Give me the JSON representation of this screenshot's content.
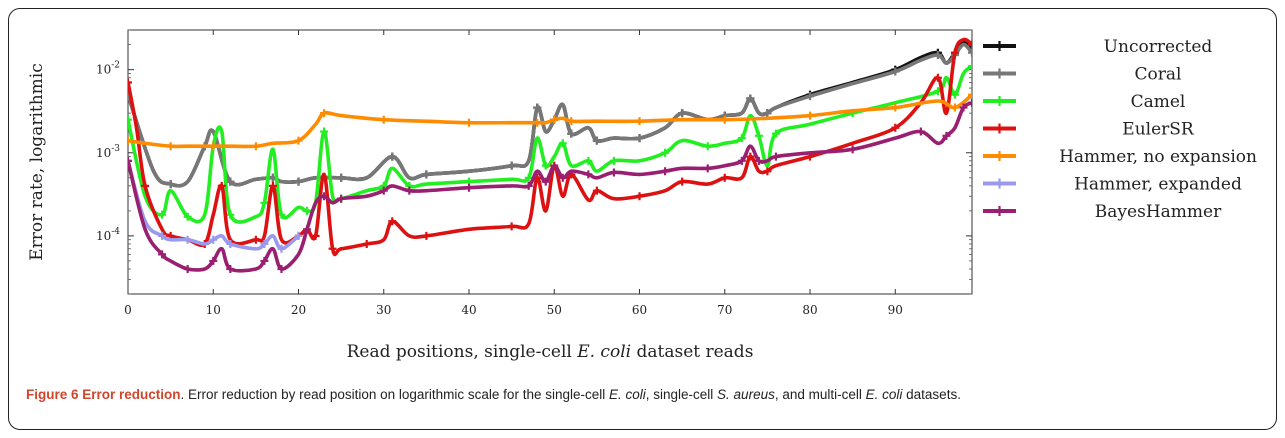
{
  "caption": {
    "figure_label": "Figure 6 Error reduction",
    "text_1": ". Error reduction by read position on logarithmic scale for the single-cell ",
    "italic_1": "E. coli",
    "text_2": ", single-cell ",
    "italic_2": "S. aureus",
    "text_3": ", and multi-cell ",
    "italic_3": "E. coli",
    "text_4": " datasets."
  },
  "chart_data": {
    "type": "line",
    "title": "",
    "xlabel_parts": [
      "Read positions, single-cell ",
      "E. coli",
      " dataset reads"
    ],
    "ylabel": "Error rate, logarithmic",
    "xlim": [
      0,
      99
    ],
    "ylim": [
      2e-05,
      0.03
    ],
    "y_scale": "log",
    "grid": false,
    "legend_position": "right",
    "x_ticks": [
      0,
      10,
      20,
      30,
      40,
      50,
      60,
      70,
      80,
      90
    ],
    "y_ticks": [
      {
        "value": 0.0001,
        "label": "10^-4"
      },
      {
        "value": 0.001,
        "label": "10^-3"
      },
      {
        "value": 0.01,
        "label": "10^-2"
      }
    ],
    "series": [
      {
        "name": "Uncorrected",
        "color": "#111111",
        "x": [
          0,
          3,
          5,
          7,
          9,
          10,
          12,
          15,
          17,
          18,
          20,
          22,
          25,
          28,
          31,
          33,
          35,
          40,
          45,
          47,
          48,
          49,
          50,
          51,
          52,
          54,
          55,
          57,
          60,
          63,
          65,
          68,
          70,
          72,
          73,
          74,
          75,
          76,
          80,
          85,
          90,
          93,
          95,
          96,
          97,
          98,
          99
        ],
        "y": [
          0.005,
          0.0006,
          0.00042,
          0.00045,
          0.0012,
          0.0018,
          0.00045,
          0.00048,
          0.0005,
          0.00045,
          0.00045,
          0.0005,
          0.0005,
          0.0005,
          0.0009,
          0.0005,
          0.00055,
          0.0006,
          0.0007,
          0.0008,
          0.0035,
          0.0018,
          0.0025,
          0.0038,
          0.0017,
          0.002,
          0.0014,
          0.0015,
          0.0015,
          0.002,
          0.003,
          0.0025,
          0.0028,
          0.003,
          0.0045,
          0.003,
          0.003,
          0.0035,
          0.005,
          0.007,
          0.01,
          0.014,
          0.016,
          0.012,
          0.016,
          0.022,
          0.018
        ]
      },
      {
        "name": "Coral",
        "color": "#777777",
        "x": [
          0,
          3,
          5,
          7,
          9,
          10,
          12,
          15,
          17,
          18,
          20,
          22,
          25,
          28,
          31,
          33,
          35,
          40,
          45,
          47,
          48,
          49,
          50,
          51,
          52,
          54,
          55,
          57,
          60,
          63,
          65,
          68,
          70,
          72,
          73,
          74,
          75,
          76,
          80,
          85,
          90,
          93,
          95,
          96,
          97,
          98,
          99
        ],
        "y": [
          0.005,
          0.0006,
          0.00042,
          0.00045,
          0.0012,
          0.0018,
          0.00045,
          0.00048,
          0.0005,
          0.00045,
          0.00045,
          0.0005,
          0.0005,
          0.0005,
          0.0009,
          0.0005,
          0.00055,
          0.0006,
          0.0007,
          0.0008,
          0.0035,
          0.0018,
          0.0025,
          0.0038,
          0.0017,
          0.002,
          0.0014,
          0.0015,
          0.0015,
          0.002,
          0.003,
          0.0025,
          0.0028,
          0.003,
          0.0045,
          0.003,
          0.003,
          0.0035,
          0.0048,
          0.0068,
          0.0095,
          0.013,
          0.015,
          0.012,
          0.015,
          0.02,
          0.016
        ]
      },
      {
        "name": "Camel",
        "color": "#22ee22",
        "x": [
          0,
          2,
          4,
          5,
          7,
          9,
          10,
          11,
          12,
          15,
          16,
          17,
          18,
          20,
          21,
          22,
          23,
          24,
          25,
          28,
          30,
          31,
          33,
          35,
          40,
          45,
          47,
          48,
          49,
          50,
          51,
          52,
          54,
          55,
          57,
          60,
          63,
          65,
          68,
          70,
          72,
          73,
          74,
          75,
          76,
          80,
          85,
          90,
          95,
          96,
          97,
          98,
          99
        ],
        "y": [
          0.0025,
          0.0003,
          0.00018,
          0.00035,
          0.00017,
          0.00018,
          0.0012,
          0.0018,
          0.00018,
          0.00017,
          0.00025,
          0.0011,
          0.00018,
          0.00022,
          0.0002,
          0.00025,
          0.0018,
          0.0003,
          0.00028,
          0.00035,
          0.0004,
          0.00065,
          0.0004,
          0.00042,
          0.00045,
          0.00048,
          0.0005,
          0.0015,
          0.0007,
          0.0009,
          0.0013,
          0.0007,
          0.0008,
          0.0006,
          0.0008,
          0.0008,
          0.001,
          0.0014,
          0.0012,
          0.0013,
          0.0015,
          0.0028,
          0.0016,
          0.0007,
          0.0017,
          0.0022,
          0.003,
          0.004,
          0.0055,
          0.008,
          0.005,
          0.009,
          0.011
        ]
      },
      {
        "name": "EulerSR",
        "color": "#dd1111",
        "x": [
          0,
          1,
          2,
          4,
          5,
          7,
          9,
          10,
          11,
          12,
          15,
          16,
          17,
          18,
          20,
          21,
          22,
          23,
          24,
          25,
          28,
          30,
          31,
          33,
          35,
          40,
          45,
          47,
          48,
          49,
          50,
          51,
          52,
          54,
          55,
          57,
          60,
          63,
          65,
          68,
          70,
          72,
          73,
          74,
          75,
          76,
          80,
          85,
          90,
          93,
          95,
          96,
          97,
          98,
          99
        ],
        "y": [
          0.007,
          0.002,
          0.0004,
          0.00012,
          0.0001,
          9e-05,
          8e-05,
          0.00018,
          0.0004,
          9e-05,
          9e-05,
          0.0001,
          0.0004,
          9e-05,
          0.0001,
          0.00012,
          0.0001,
          0.00055,
          7e-05,
          7e-05,
          8e-05,
          9e-05,
          0.00015,
          0.0001,
          0.0001,
          0.00012,
          0.00013,
          0.00014,
          0.0005,
          0.0002,
          0.0007,
          0.0003,
          0.00055,
          0.00027,
          0.00035,
          0.00028,
          0.0003,
          0.00035,
          0.00045,
          0.00042,
          0.0005,
          0.0005,
          0.0009,
          0.0006,
          0.0006,
          0.0007,
          0.0009,
          0.0013,
          0.002,
          0.004,
          0.008,
          0.003,
          0.016,
          0.023,
          0.02
        ]
      },
      {
        "name": "Hammer, no expansion",
        "color": "#ff8c00",
        "x": [
          0,
          2,
          5,
          7,
          10,
          12,
          15,
          17,
          20,
          22,
          23,
          25,
          30,
          35,
          40,
          45,
          48,
          49,
          50,
          51,
          52,
          55,
          60,
          65,
          70,
          75,
          80,
          85,
          90,
          95,
          97,
          99
        ],
        "y": [
          0.0014,
          0.0013,
          0.0012,
          0.0012,
          0.0012,
          0.0012,
          0.0012,
          0.0013,
          0.0014,
          0.0022,
          0.003,
          0.0028,
          0.0025,
          0.0024,
          0.0023,
          0.0023,
          0.0023,
          0.0023,
          0.0025,
          0.0026,
          0.0024,
          0.0024,
          0.0024,
          0.0025,
          0.0025,
          0.0026,
          0.0028,
          0.0032,
          0.0035,
          0.0042,
          0.0035,
          0.005
        ]
      },
      {
        "name": "Hammer, expanded",
        "color": "#9999ee",
        "x": [
          0,
          2,
          4,
          5,
          7,
          9,
          10,
          11,
          12,
          15,
          16,
          17,
          18,
          20
        ],
        "y": [
          0.0008,
          0.00015,
          0.0001,
          9e-05,
          9e-05,
          8e-05,
          9e-05,
          0.0001,
          8e-05,
          7e-05,
          8e-05,
          0.0001,
          7e-05,
          0.0001
        ]
      },
      {
        "name": "BayesHammer",
        "color": "#991f70",
        "x": [
          0,
          2,
          4,
          5,
          7,
          9,
          10,
          11,
          12,
          15,
          16,
          17,
          18,
          20,
          21,
          22,
          23,
          24,
          25,
          28,
          30,
          31,
          33,
          35,
          40,
          45,
          47,
          48,
          49,
          50,
          51,
          52,
          54,
          55,
          57,
          60,
          63,
          65,
          68,
          70,
          72,
          73,
          74,
          75,
          76,
          80,
          85,
          90,
          93,
          95,
          96,
          97,
          98,
          99
        ],
        "y": [
          0.0008,
          0.00012,
          6e-05,
          5e-05,
          4e-05,
          4e-05,
          5e-05,
          7e-05,
          4e-05,
          4e-05,
          5e-05,
          7e-05,
          4e-05,
          6e-05,
          0.00012,
          0.00025,
          0.0003,
          0.00025,
          0.00028,
          0.0003,
          0.00035,
          0.0004,
          0.00035,
          0.00035,
          0.00038,
          0.0004,
          0.0004,
          0.0006,
          0.00045,
          0.0007,
          0.0005,
          0.0006,
          0.00055,
          0.0005,
          0.00058,
          0.00055,
          0.0006,
          0.00065,
          0.00065,
          0.0007,
          0.0008,
          0.0012,
          0.0008,
          0.0008,
          0.0009,
          0.001,
          0.0011,
          0.0015,
          0.0018,
          0.0013,
          0.0016,
          0.002,
          0.0035,
          0.004
        ]
      }
    ]
  }
}
